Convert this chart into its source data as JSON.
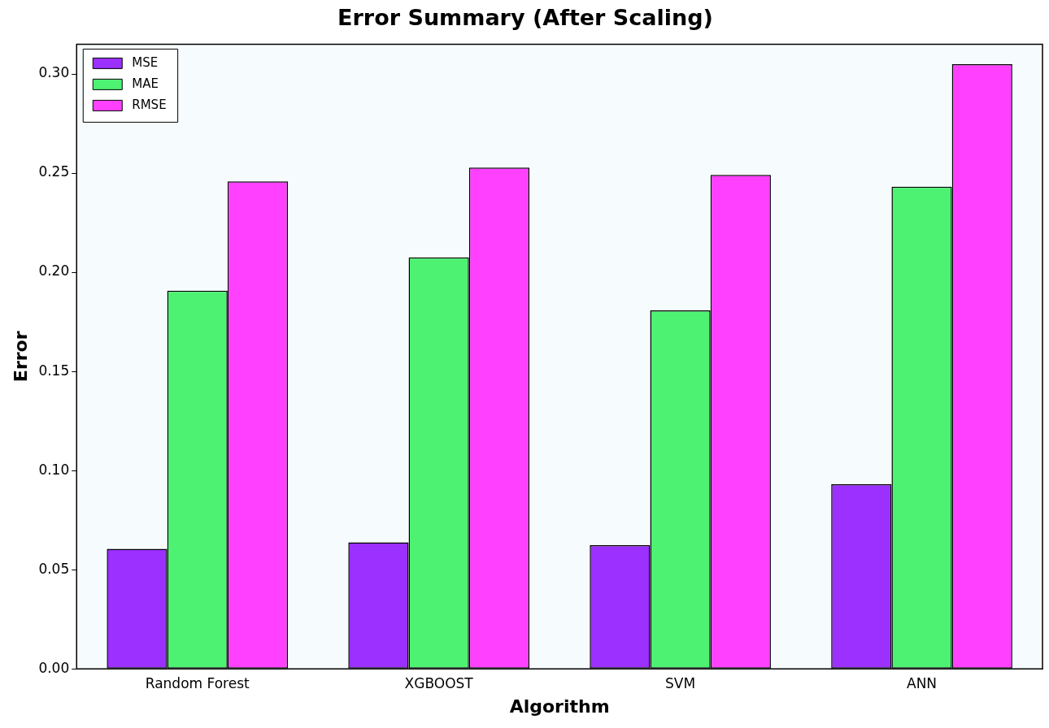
{
  "chart_data": {
    "type": "bar",
    "title": "Error Summary (After Scaling)",
    "xlabel": "Algorithm",
    "ylabel": "Error",
    "categories": [
      "Random Forest",
      "XGBOOST",
      "SVM",
      "ANN"
    ],
    "series": [
      {
        "name": "MSE",
        "color": "#9b30ff",
        "values": [
          0.0605,
          0.0638,
          0.0624,
          0.0931
        ]
      },
      {
        "name": "MAE",
        "color": "#4ef273",
        "values": [
          0.1907,
          0.2075,
          0.1808,
          0.2432
        ]
      },
      {
        "name": "RMSE",
        "color": "#ff40ff",
        "values": [
          0.2458,
          0.2528,
          0.2491,
          0.3049
        ]
      }
    ],
    "ylim": [
      0,
      0.315
    ],
    "yticks": [
      {
        "value": 0,
        "label": "0.00"
      },
      {
        "value": 0.05,
        "label": "0.05"
      },
      {
        "value": 0.1,
        "label": "0.10"
      },
      {
        "value": 0.15,
        "label": "0.15"
      },
      {
        "value": 0.2,
        "label": "0.20"
      },
      {
        "value": 0.25,
        "label": "0.25"
      },
      {
        "value": 0.3,
        "label": "0.30"
      }
    ],
    "grid": false,
    "legend": "top left"
  }
}
